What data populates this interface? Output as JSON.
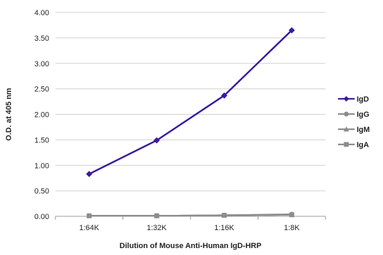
{
  "chart_data": {
    "type": "line",
    "title": "",
    "xlabel": "Dilution of Mouse Anti-Human IgD-HRP",
    "ylabel": "O.D. at 405 nm",
    "categories": [
      "1:64K",
      "1:32K",
      "1:16K",
      "1:8K"
    ],
    "ylim": [
      0,
      4
    ],
    "yticks": [
      "0.00",
      "0.50",
      "1.00",
      "1.50",
      "2.00",
      "2.50",
      "3.00",
      "3.50",
      "4.00"
    ],
    "grid": true,
    "legend": "right",
    "series": [
      {
        "name": "IgD",
        "values": [
          0.83,
          1.49,
          2.37,
          3.65
        ],
        "color": "#3a1a9e",
        "marker": "diamond"
      },
      {
        "name": "IgG",
        "values": [
          0.01,
          0.01,
          0.02,
          0.04
        ],
        "color": "#8c8c8c",
        "marker": "circle"
      },
      {
        "name": "IgM",
        "values": [
          0.01,
          0.01,
          0.02,
          0.03
        ],
        "color": "#8c8c8c",
        "marker": "triangle"
      },
      {
        "name": "IgA",
        "values": [
          0.01,
          0.01,
          0.02,
          0.03
        ],
        "color": "#8c8c8c",
        "marker": "square"
      }
    ]
  }
}
